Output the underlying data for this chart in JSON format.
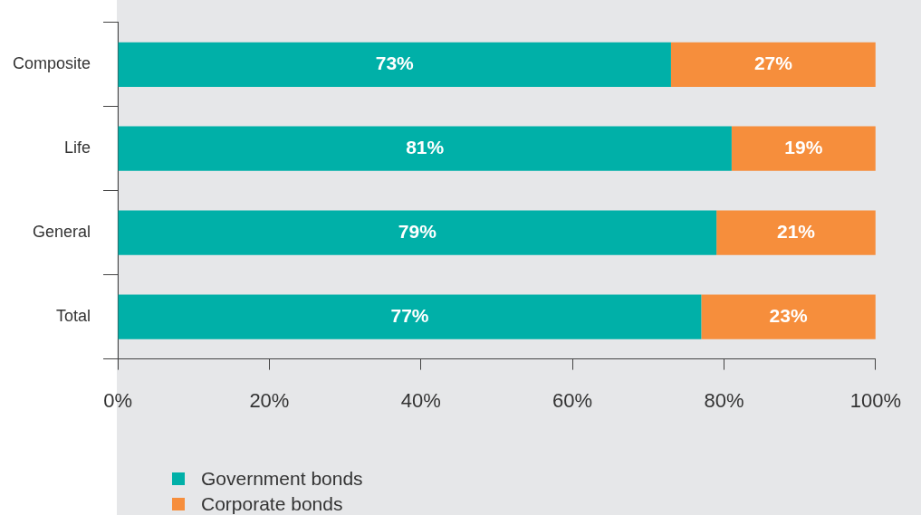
{
  "chart_data": {
    "type": "bar",
    "orientation": "horizontal",
    "stacked": true,
    "categories": [
      "Composite",
      "Life",
      "General",
      "Total"
    ],
    "series": [
      {
        "name": "Government bonds",
        "color": "#00b0a8",
        "values": [
          73,
          81,
          79,
          77
        ],
        "value_labels": [
          "73%",
          "81%",
          "79%",
          "77%"
        ]
      },
      {
        "name": "Corporate bonds",
        "color": "#f68e3c",
        "values": [
          27,
          19,
          21,
          23
        ],
        "value_labels": [
          "27%",
          "19%",
          "21%",
          "23%"
        ]
      }
    ],
    "xlim": [
      0,
      100
    ],
    "xticks": [
      {
        "value": 0,
        "label": "0%"
      },
      {
        "value": 20,
        "label": "20%"
      },
      {
        "value": 40,
        "label": "40%"
      },
      {
        "value": 60,
        "label": "60%"
      },
      {
        "value": 80,
        "label": "80%"
      },
      {
        "value": 100,
        "label": "100%"
      }
    ],
    "grid": false,
    "legend": "bottom left"
  }
}
